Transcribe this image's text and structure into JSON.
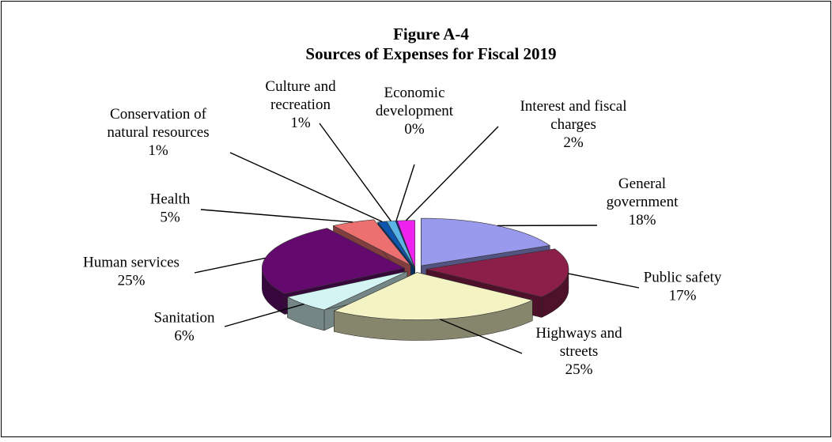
{
  "chart_data": {
    "type": "pie",
    "title": "Figure A-4",
    "subtitle": "Sources of Expenses for Fiscal 2019",
    "unit": "%",
    "legend": "none",
    "slices": [
      {
        "name": "General government",
        "label_lines": [
          "General",
          "government"
        ],
        "pct_label": "18%",
        "value": 18,
        "color": "#9999ee"
      },
      {
        "name": "Public safety",
        "label_lines": [
          "Public safety"
        ],
        "pct_label": "17%",
        "value": 17,
        "color": "#8c1f4a"
      },
      {
        "name": "Highways and streets",
        "label_lines": [
          "Highways and",
          "streets"
        ],
        "pct_label": "25%",
        "value": 25,
        "color": "#f4f3c4"
      },
      {
        "name": "Sanitation",
        "label_lines": [
          "Sanitation"
        ],
        "pct_label": "6%",
        "value": 6,
        "color": "#d4f4f4"
      },
      {
        "name": "Human services",
        "label_lines": [
          "Human services"
        ],
        "pct_label": "25%",
        "value": 25,
        "color": "#640a6e"
      },
      {
        "name": "Health",
        "label_lines": [
          "Health"
        ],
        "pct_label": "5%",
        "value": 5,
        "color": "#ec7070"
      },
      {
        "name": "Conservation of natural resources",
        "label_lines": [
          "Conservation of",
          "natural resources"
        ],
        "pct_label": "1%",
        "value": 1,
        "color": "#0c56b0"
      },
      {
        "name": "Culture and recreation",
        "label_lines": [
          "Culture and",
          "recreation"
        ],
        "pct_label": "1%",
        "value": 1,
        "color": "#5ab4e6"
      },
      {
        "name": "Economic development",
        "label_lines": [
          "Economic",
          "development"
        ],
        "pct_label": "0%",
        "value": 0,
        "color": "#1a1a8c"
      },
      {
        "name": "Interest and fiscal charges",
        "label_lines": [
          "Interest and fiscal",
          "charges"
        ],
        "pct_label": "2%",
        "value": 2,
        "color": "#ee22ee"
      }
    ]
  }
}
